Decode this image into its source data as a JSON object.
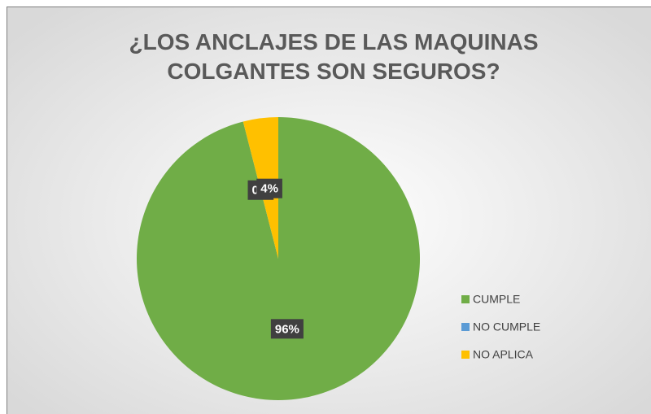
{
  "chart_data": {
    "type": "pie",
    "title": "¿LOS ANCLAJES DE LAS MAQUINAS COLGANTES SON SEGUROS?",
    "categories": [
      "CUMPLE",
      "NO CUMPLE",
      "NO APLICA"
    ],
    "values": [
      96,
      0,
      4
    ],
    "value_labels": [
      "96%",
      "0%",
      "4%"
    ],
    "colors": [
      "#70ad47",
      "#5b9bd5",
      "#ffc000"
    ],
    "legend": "right"
  }
}
